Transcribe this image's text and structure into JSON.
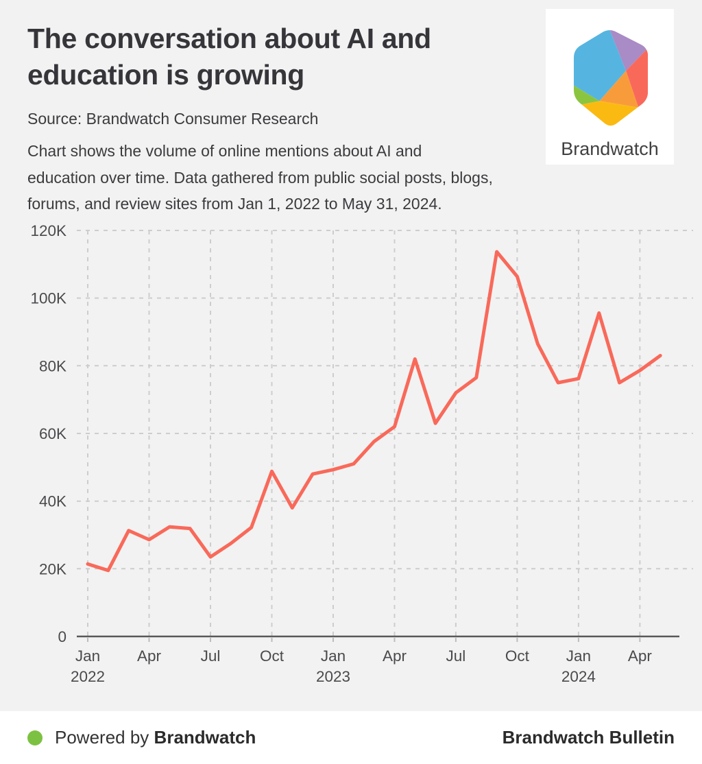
{
  "header": {
    "title": "The conversation about AI and\neducation is growing",
    "source": "Source: Brandwatch Consumer Research",
    "description": "Chart shows the volume of online mentions about AI and\neducation over time. Data gathered from public social posts, blogs,\nforums, and review sites from Jan 1, 2022 to May 31, 2024."
  },
  "logo": {
    "brand_name": "Brandwatch",
    "colors": {
      "blue": "#55B5E0",
      "purple": "#A98BC6",
      "salmon": "#F9695A",
      "orange": "#F89C3B",
      "yellow": "#FBBA12",
      "green": "#8BC540"
    }
  },
  "chart_data": {
    "type": "line",
    "x": [
      "Jan 2022",
      "Feb 2022",
      "Mar 2022",
      "Apr 2022",
      "May 2022",
      "Jun 2022",
      "Jul 2022",
      "Aug 2022",
      "Sep 2022",
      "Oct 2022",
      "Nov 2022",
      "Dec 2022",
      "Jan 2023",
      "Feb 2023",
      "Mar 2023",
      "Apr 2023",
      "May 2023",
      "Jun 2023",
      "Jul 2023",
      "Aug 2023",
      "Sep 2023",
      "Oct 2023",
      "Nov 2023",
      "Dec 2023",
      "Jan 2024",
      "Feb 2024",
      "Mar 2024",
      "Apr 2024",
      "May 2024"
    ],
    "values": [
      21400,
      19500,
      31300,
      28600,
      32400,
      31900,
      23500,
      27500,
      32200,
      48800,
      38000,
      48000,
      49300,
      51000,
      57600,
      62000,
      82000,
      63000,
      72000,
      76500,
      113700,
      106400,
      86500,
      75000,
      76200,
      95600,
      75000,
      78600,
      83000
    ],
    "series_label": "Volume of online mentions about AI and education",
    "xlabel": "",
    "ylabel": "",
    "ylim": [
      0,
      120000
    ],
    "grid": "dashed",
    "legend": "none",
    "line_color": "#F9695A",
    "y_ticks": [
      "0",
      "20K",
      "40K",
      "60K",
      "80K",
      "100K",
      "120K"
    ],
    "x_ticks": [
      {
        "label": "Jan",
        "year": "2022"
      },
      {
        "label": "Apr"
      },
      {
        "label": "Jul"
      },
      {
        "label": "Oct"
      },
      {
        "label": "Jan",
        "year": "2023"
      },
      {
        "label": "Apr"
      },
      {
        "label": "Jul"
      },
      {
        "label": "Oct"
      },
      {
        "label": "Jan",
        "year": "2024"
      },
      {
        "label": "Apr"
      }
    ]
  },
  "footer": {
    "powered_by_prefix": "Powered by",
    "powered_by_brand": "Brandwatch",
    "right_text": "Brandwatch Bulletin",
    "dot_color": "#7DC142"
  }
}
